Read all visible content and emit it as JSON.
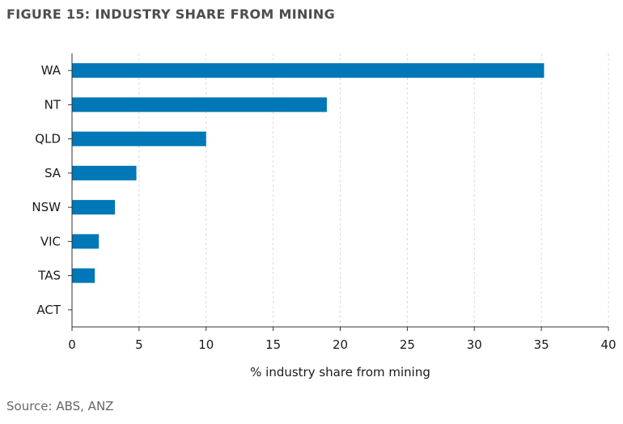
{
  "title": "FIGURE 15: INDUSTRY SHARE FROM MINING",
  "source": "Source: ABS, ANZ",
  "chart_data": {
    "type": "bar",
    "orientation": "horizontal",
    "categories": [
      "WA",
      "NT",
      "QLD",
      "SA",
      "NSW",
      "VIC",
      "TAS",
      "ACT"
    ],
    "values": [
      35.2,
      19.0,
      10.0,
      4.8,
      3.2,
      2.0,
      1.7,
      0.0
    ],
    "xlabel": "% industry share from mining",
    "ylabel": "",
    "xlim": [
      0,
      40
    ],
    "xticks": [
      0,
      5,
      10,
      15,
      20,
      25,
      30,
      35,
      40
    ],
    "grid": true,
    "bar_color": "#0077b6"
  }
}
